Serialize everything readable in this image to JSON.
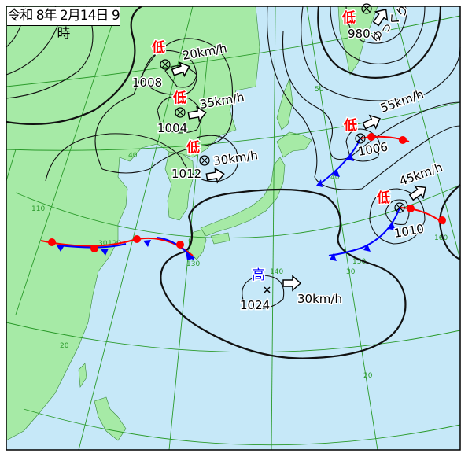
{
  "title": "令和 8年 2月14日 9時",
  "colors": {
    "sea": "#c6e8f8",
    "land": "#a6eaa6",
    "grid": "#2a9a2a",
    "warm_front": "#ff0000",
    "cold_front": "#0000ff",
    "low_label": "#ff0000",
    "high_label": "#0000ff"
  },
  "grid_labels": {
    "lat50": "50",
    "lat40_w": "40",
    "lat40_e": "40",
    "lon110": "110",
    "lon120": "120",
    "lon130": "130",
    "lon140": "140",
    "lon150": "150",
    "lon160": "160",
    "lat30_w": "30",
    "lat30_e": "30",
    "lat20_w": "20",
    "lat20_e": "20"
  },
  "systems": [
    {
      "type_label": "低",
      "pressure": "1008",
      "movement": "20km/h"
    },
    {
      "type_label": "低",
      "pressure": "1004",
      "movement": "35km/h"
    },
    {
      "type_label": "低",
      "pressure": "1012",
      "movement": "30km/h"
    },
    {
      "type_label": "低",
      "pressure": "980",
      "movement": "ゆっくり"
    },
    {
      "type_label": "低",
      "pressure": "1006",
      "movement": "55km/h"
    },
    {
      "type_label": "低",
      "pressure": "1010",
      "movement": "45km/h"
    },
    {
      "type_label": "高",
      "pressure": "1024",
      "movement": "30km/h"
    }
  ],
  "icons": {
    "low_center": "circled-x-icon",
    "high_center": "x-icon",
    "movement": "hollow-arrow-icon"
  }
}
